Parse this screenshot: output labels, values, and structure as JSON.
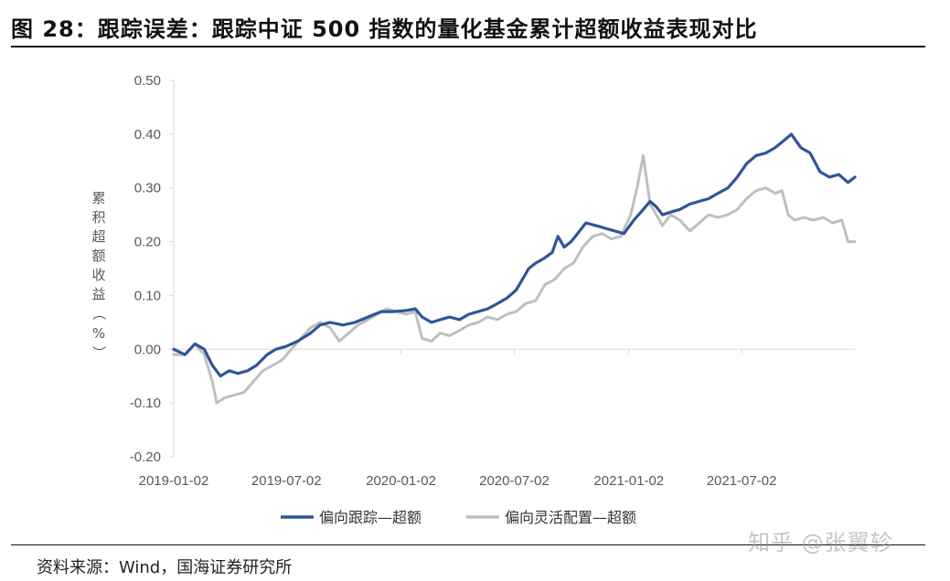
{
  "title": "图 28：跟踪误差：跟踪中证 500 指数的量化基金累计超额收益表现对比",
  "source": "资料来源：Wind，国海证券研究所",
  "watermark": "知乎 @张翼轸",
  "chart_data": {
    "type": "line",
    "title": "",
    "xlabel": "",
    "ylabel": "累积超额收益（%）",
    "ylim": [
      -0.2,
      0.5
    ],
    "xlim": [
      "2019-01-02",
      "2021-12-31"
    ],
    "yticks": [
      "0.50",
      "0.40",
      "0.30",
      "0.20",
      "0.10",
      "0.00",
      "-0.10",
      "-0.20"
    ],
    "xticks": [
      "2019-01-02",
      "2019-07-02",
      "2020-01-02",
      "2020-07-02",
      "2021-01-02",
      "2021-07-02"
    ],
    "grid": false,
    "legend": "bottom",
    "series": [
      {
        "name": "偏向跟踪—超额",
        "color": "#2F5597",
        "points": [
          [
            "2019-01-02",
            0.0
          ],
          [
            "2019-01-20",
            -0.01
          ],
          [
            "2019-02-05",
            0.01
          ],
          [
            "2019-02-20",
            0.0
          ],
          [
            "2019-03-05",
            -0.03
          ],
          [
            "2019-03-18",
            -0.05
          ],
          [
            "2019-04-01",
            -0.04
          ],
          [
            "2019-04-15",
            -0.045
          ],
          [
            "2019-05-01",
            -0.04
          ],
          [
            "2019-05-15",
            -0.03
          ],
          [
            "2019-06-01",
            -0.01
          ],
          [
            "2019-06-15",
            0.0
          ],
          [
            "2019-07-01",
            0.005
          ],
          [
            "2019-07-20",
            0.015
          ],
          [
            "2019-08-10",
            0.03
          ],
          [
            "2019-08-25",
            0.045
          ],
          [
            "2019-09-10",
            0.05
          ],
          [
            "2019-10-01",
            0.045
          ],
          [
            "2019-10-20",
            0.05
          ],
          [
            "2019-11-10",
            0.06
          ],
          [
            "2019-12-01",
            0.07
          ],
          [
            "2019-12-20",
            0.07
          ],
          [
            "2020-01-10",
            0.072
          ],
          [
            "2020-01-25",
            0.075
          ],
          [
            "2020-02-05",
            0.06
          ],
          [
            "2020-02-20",
            0.05
          ],
          [
            "2020-03-05",
            0.055
          ],
          [
            "2020-03-20",
            0.06
          ],
          [
            "2020-04-05",
            0.055
          ],
          [
            "2020-04-20",
            0.065
          ],
          [
            "2020-05-05",
            0.07
          ],
          [
            "2020-05-20",
            0.075
          ],
          [
            "2020-06-05",
            0.085
          ],
          [
            "2020-06-20",
            0.095
          ],
          [
            "2020-07-05",
            0.11
          ],
          [
            "2020-07-15",
            0.13
          ],
          [
            "2020-07-25",
            0.15
          ],
          [
            "2020-08-05",
            0.16
          ],
          [
            "2020-08-20",
            0.17
          ],
          [
            "2020-09-01",
            0.18
          ],
          [
            "2020-09-10",
            0.21
          ],
          [
            "2020-09-20",
            0.19
          ],
          [
            "2020-10-01",
            0.2
          ],
          [
            "2020-10-15",
            0.22
          ],
          [
            "2020-10-25",
            0.235
          ],
          [
            "2020-11-10",
            0.23
          ],
          [
            "2020-11-25",
            0.225
          ],
          [
            "2020-12-10",
            0.22
          ],
          [
            "2020-12-25",
            0.215
          ],
          [
            "2021-01-10",
            0.24
          ],
          [
            "2021-01-25",
            0.26
          ],
          [
            "2021-02-05",
            0.275
          ],
          [
            "2021-02-15",
            0.265
          ],
          [
            "2021-02-25",
            0.25
          ],
          [
            "2021-03-10",
            0.255
          ],
          [
            "2021-03-25",
            0.26
          ],
          [
            "2021-04-10",
            0.27
          ],
          [
            "2021-04-25",
            0.275
          ],
          [
            "2021-05-10",
            0.28
          ],
          [
            "2021-05-25",
            0.29
          ],
          [
            "2021-06-10",
            0.3
          ],
          [
            "2021-06-25",
            0.32
          ],
          [
            "2021-07-10",
            0.345
          ],
          [
            "2021-07-25",
            0.36
          ],
          [
            "2021-08-10",
            0.365
          ],
          [
            "2021-08-25",
            0.375
          ],
          [
            "2021-09-10",
            0.39
          ],
          [
            "2021-09-20",
            0.4
          ],
          [
            "2021-10-05",
            0.375
          ],
          [
            "2021-10-20",
            0.365
          ],
          [
            "2021-11-05",
            0.33
          ],
          [
            "2021-11-20",
            0.32
          ],
          [
            "2021-12-05",
            0.325
          ],
          [
            "2021-12-20",
            0.31
          ],
          [
            "2021-12-31",
            0.32
          ]
        ]
      },
      {
        "name": "偏向灵活配置—超额",
        "color": "#BFBFBF",
        "points": [
          [
            "2019-01-02",
            -0.01
          ],
          [
            "2019-01-20",
            -0.01
          ],
          [
            "2019-02-05",
            0.01
          ],
          [
            "2019-02-20",
            -0.01
          ],
          [
            "2019-03-05",
            -0.06
          ],
          [
            "2019-03-12",
            -0.1
          ],
          [
            "2019-03-25",
            -0.09
          ],
          [
            "2019-04-10",
            -0.085
          ],
          [
            "2019-04-25",
            -0.08
          ],
          [
            "2019-05-10",
            -0.06
          ],
          [
            "2019-05-25",
            -0.04
          ],
          [
            "2019-06-10",
            -0.03
          ],
          [
            "2019-06-25",
            -0.02
          ],
          [
            "2019-07-10",
            0.0
          ],
          [
            "2019-07-25",
            0.02
          ],
          [
            "2019-08-10",
            0.04
          ],
          [
            "2019-08-25",
            0.05
          ],
          [
            "2019-09-10",
            0.04
          ],
          [
            "2019-09-25",
            0.015
          ],
          [
            "2019-10-10",
            0.03
          ],
          [
            "2019-10-25",
            0.045
          ],
          [
            "2019-11-10",
            0.055
          ],
          [
            "2019-11-25",
            0.065
          ],
          [
            "2019-12-10",
            0.075
          ],
          [
            "2019-12-25",
            0.07
          ],
          [
            "2020-01-10",
            0.065
          ],
          [
            "2020-01-25",
            0.07
          ],
          [
            "2020-02-05",
            0.02
          ],
          [
            "2020-02-20",
            0.015
          ],
          [
            "2020-03-05",
            0.03
          ],
          [
            "2020-03-20",
            0.025
          ],
          [
            "2020-04-05",
            0.035
          ],
          [
            "2020-04-20",
            0.045
          ],
          [
            "2020-05-05",
            0.05
          ],
          [
            "2020-05-20",
            0.06
          ],
          [
            "2020-06-05",
            0.055
          ],
          [
            "2020-06-20",
            0.065
          ],
          [
            "2020-07-05",
            0.07
          ],
          [
            "2020-07-20",
            0.085
          ],
          [
            "2020-08-05",
            0.09
          ],
          [
            "2020-08-20",
            0.12
          ],
          [
            "2020-09-05",
            0.13
          ],
          [
            "2020-09-20",
            0.15
          ],
          [
            "2020-10-05",
            0.16
          ],
          [
            "2020-10-20",
            0.19
          ],
          [
            "2020-11-05",
            0.21
          ],
          [
            "2020-11-20",
            0.215
          ],
          [
            "2020-12-05",
            0.205
          ],
          [
            "2020-12-20",
            0.21
          ],
          [
            "2021-01-05",
            0.25
          ],
          [
            "2021-01-15",
            0.3
          ],
          [
            "2021-01-25",
            0.36
          ],
          [
            "2021-02-05",
            0.27
          ],
          [
            "2021-02-15",
            0.25
          ],
          [
            "2021-02-25",
            0.23
          ],
          [
            "2021-03-10",
            0.25
          ],
          [
            "2021-03-25",
            0.24
          ],
          [
            "2021-04-10",
            0.22
          ],
          [
            "2021-04-25",
            0.235
          ],
          [
            "2021-05-10",
            0.25
          ],
          [
            "2021-05-25",
            0.245
          ],
          [
            "2021-06-10",
            0.25
          ],
          [
            "2021-06-25",
            0.26
          ],
          [
            "2021-07-10",
            0.28
          ],
          [
            "2021-07-25",
            0.295
          ],
          [
            "2021-08-10",
            0.3
          ],
          [
            "2021-08-25",
            0.29
          ],
          [
            "2021-09-05",
            0.295
          ],
          [
            "2021-09-15",
            0.25
          ],
          [
            "2021-09-25",
            0.24
          ],
          [
            "2021-10-10",
            0.245
          ],
          [
            "2021-10-25",
            0.24
          ],
          [
            "2021-11-10",
            0.245
          ],
          [
            "2021-11-25",
            0.235
          ],
          [
            "2021-12-10",
            0.24
          ],
          [
            "2021-12-20",
            0.2
          ],
          [
            "2021-12-31",
            0.2
          ]
        ]
      }
    ]
  }
}
